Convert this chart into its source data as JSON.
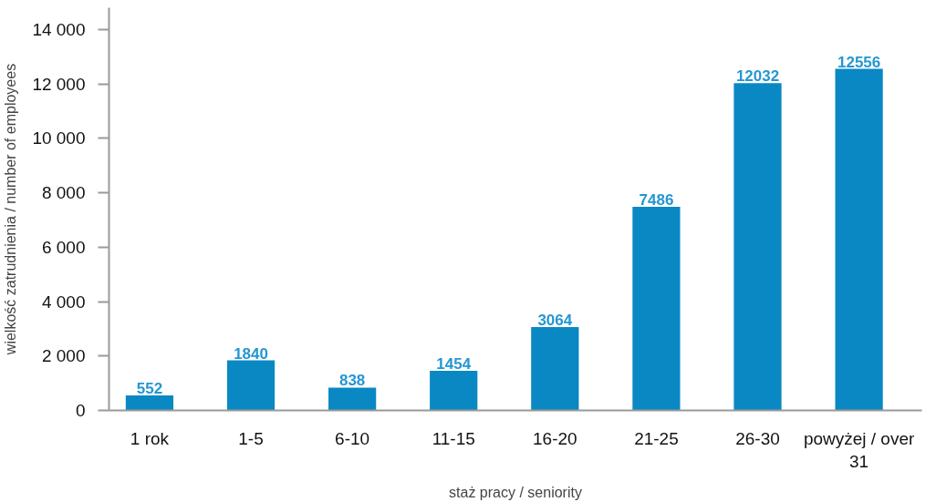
{
  "chart_data": {
    "type": "bar",
    "xlabel": "staż pracy / seniority",
    "ylabel": "wielkość zatrudnienia / number of employees",
    "categories": [
      "1 rok",
      "1-5",
      "6-10",
      "11-15",
      "16-20",
      "21-25",
      "26-30",
      "powyżej / over 31"
    ],
    "values": [
      552,
      1840,
      838,
      1454,
      3064,
      7486,
      12032,
      12556
    ],
    "color": "#0a88c4",
    "ylim": [
      0,
      14800
    ],
    "yticks": [
      0,
      {
        "value": 2000,
        "label": "2 000"
      },
      {
        "value": 4000,
        "label": "4 000"
      },
      {
        "value": 6000,
        "label": "6 000"
      },
      {
        "value": 8000,
        "label": "8 000"
      },
      {
        "value": 10000,
        "label": "10 000"
      },
      {
        "value": 12000,
        "label": "12 000"
      },
      {
        "value": 14000,
        "label": "14 000"
      }
    ],
    "data_labels": true
  }
}
